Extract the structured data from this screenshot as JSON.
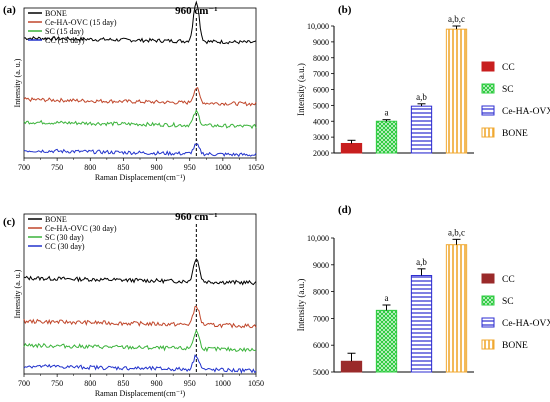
{
  "chart_data": [
    {
      "panel": "(a)",
      "type": "line",
      "title": "",
      "xlabel": "Raman Displacement(cm⁻¹)",
      "ylabel": "Intensity (a. u.)",
      "xlim": [
        700,
        1050
      ],
      "xticks": [
        700,
        750,
        800,
        850,
        900,
        950,
        1000,
        1050
      ],
      "annotation": "960 cm⁻¹",
      "peak_x": 960,
      "legend_position": "top-left",
      "series": [
        {
          "name": "BONE",
          "color": "#000000",
          "baseline": 0.8,
          "peak": 0.27
        },
        {
          "name": "Ce-HA-OVC (15 day)",
          "color": "#c0462a",
          "baseline": 0.39,
          "peak": 0.1
        },
        {
          "name": "SC (15 day)",
          "color": "#3bb33b",
          "baseline": 0.24,
          "peak": 0.09
        },
        {
          "name": "CC (15 day)",
          "color": "#2233cc",
          "baseline": 0.05,
          "peak": 0.06
        }
      ]
    },
    {
      "panel": "(b)",
      "type": "bar",
      "ylabel": "Intensity (a.u.)",
      "ylim": [
        2000,
        10000
      ],
      "yticks": [
        "2000",
        "3000",
        "4000",
        "5000",
        "6000",
        "7000",
        "8000",
        "9000",
        "10,000"
      ],
      "categories": [
        "CC",
        "SC",
        "Ce-HA-OVX",
        "BONE"
      ],
      "values": [
        2600,
        4000,
        4950,
        9800
      ],
      "errors": [
        200,
        100,
        150,
        200
      ],
      "labels": [
        "",
        "a",
        "a,b",
        "a,b,c"
      ],
      "colors": [
        "#c81e1e",
        "#2ecc40",
        "#2b2bd0",
        "#f0a830"
      ],
      "legend_position": "right"
    },
    {
      "panel": "(c)",
      "type": "line",
      "title": "",
      "xlabel": "Raman Displacement(cm⁻¹)",
      "ylabel": "Intensity (a. u.)",
      "xlim": [
        700,
        1050
      ],
      "xticks": [
        700,
        750,
        800,
        850,
        900,
        950,
        1000,
        1050
      ],
      "annotation": "960 cm⁻¹",
      "peak_x": 960,
      "legend_position": "top-left",
      "series": [
        {
          "name": "BONE",
          "color": "#000000",
          "baseline": 0.6,
          "peak": 0.15
        },
        {
          "name": "Ce-HA-OVC (30 day)",
          "color": "#c0462a",
          "baseline": 0.33,
          "peak": 0.12
        },
        {
          "name": "SC (30 day)",
          "color": "#3bb33b",
          "baseline": 0.18,
          "peak": 0.11
        },
        {
          "name": "CC (30 day)",
          "color": "#2233cc",
          "baseline": 0.05,
          "peak": 0.09
        }
      ]
    },
    {
      "panel": "(d)",
      "type": "bar",
      "ylabel": "Intensity (a.u.)",
      "ylim": [
        5000,
        10000
      ],
      "yticks": [
        "5000",
        "6000",
        "7000",
        "8000",
        "9000",
        "10,000"
      ],
      "categories": [
        "CC",
        "SC",
        "Ce-HA-OVX",
        "BONE"
      ],
      "values": [
        5400,
        7300,
        8600,
        9750
      ],
      "errors": [
        300,
        200,
        250,
        200
      ],
      "labels": [
        "",
        "a",
        "a,b",
        "a,b,c"
      ],
      "colors": [
        "#9a2a2a",
        "#2ecc40",
        "#2b2bd0",
        "#f0a830"
      ],
      "legend_position": "right"
    }
  ]
}
